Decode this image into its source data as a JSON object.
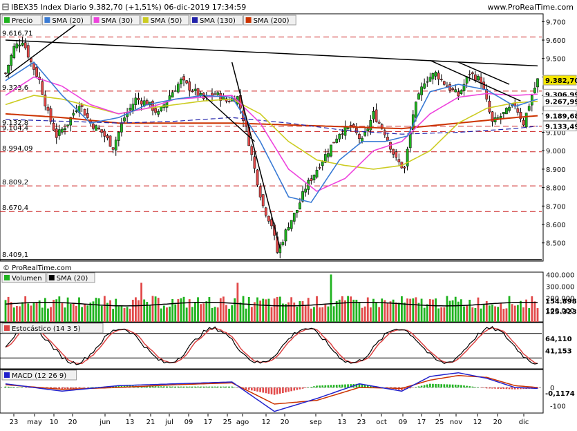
{
  "header": {
    "title": "IBEX35 Index Diario 9.382,70 (+1,51%) 06-dic-2019 17:34:59",
    "brand": "www.ProRealTime.com"
  },
  "watermark": "© ProRealTime.com",
  "colors": {
    "up": "#1fb31f",
    "down": "#e24a4a",
    "sma20": "#3a7bd5",
    "sma30": "#ee44dd",
    "sma50": "#cccc22",
    "sma130": "#2222aa",
    "sma200": "#cc3300",
    "stoch_k": "#000000",
    "stoch_d": "#dd4444",
    "macd": "#2222cc",
    "signal": "#cc3300"
  },
  "price_panel": {
    "legend": [
      {
        "label": "Precio",
        "color": "#1fb31f"
      },
      {
        "label": "SMA (20)",
        "color": "#3a7bd5"
      },
      {
        "label": "SMA (30)",
        "color": "#ee44dd"
      },
      {
        "label": "SMA (50)",
        "color": "#cccc22"
      },
      {
        "label": "SMA (130)",
        "color": "#2222aa"
      },
      {
        "label": "SMA (200)",
        "color": "#cc3300"
      }
    ],
    "level_labels": [
      "9.616,71",
      "9.323,6",
      "9.132,8",
      "9.104,4",
      "8.994,09",
      "8.809,2",
      "8.670,4",
      "8.409,1"
    ],
    "axis_ticks": [
      "9.700",
      "9.600",
      "9.500",
      "9.400",
      "9.300",
      "9.200",
      "9.100",
      "9.000",
      "8.900",
      "8.800",
      "8.700",
      "8.600",
      "8.500"
    ],
    "value_badges": [
      {
        "text": "9.382,70",
        "bg": "#f5e600",
        "fg": "#000"
      },
      {
        "text": "9.306,99",
        "bg": "#ffffff",
        "fg": "#ee44dd"
      },
      {
        "text": "9.267,99",
        "bg": "#ffffff",
        "fg": "#bbbb00"
      },
      {
        "text": "9.189,68",
        "bg": "#ffffff",
        "fg": "#cc3300"
      },
      {
        "text": "9.133,49",
        "bg": "#ffffff",
        "fg": "#2222aa"
      }
    ]
  },
  "volume_panel": {
    "legend": [
      {
        "label": "Volumen",
        "color": "#1fb31f"
      },
      {
        "label": "SMA (20)",
        "color": "#000000"
      }
    ],
    "axis_ticks": [
      "400.000",
      "300.000",
      "200.000",
      "100.000"
    ],
    "value_badges": [
      {
        "text": "154.898",
        "bg": "#ffffff",
        "fg": "#000"
      },
      {
        "text": "125.323",
        "bg": "#ffffff",
        "fg": "#1fb31f"
      }
    ]
  },
  "stoch_panel": {
    "legend": [
      {
        "label": "Estocástico (14 3 5)",
        "color": "#dd4444"
      }
    ],
    "value_badges": [
      {
        "text": "64,110",
        "bg": "#ffffff",
        "fg": "#000"
      },
      {
        "text": "41,153",
        "bg": "#ffffff",
        "fg": "#dd4444"
      }
    ]
  },
  "macd_panel": {
    "legend": [
      {
        "label": "MACD (12 26 9)",
        "color": "#2222cc"
      }
    ],
    "axis_ticks": [
      "0",
      "-100"
    ],
    "value_badges": [
      {
        "text": "-0,1174",
        "bg": "#ffffff",
        "fg": "#dd4444"
      }
    ]
  },
  "x_axis": {
    "ticks": [
      "23",
      "may",
      "10",
      "20",
      "jun",
      "13",
      "21",
      "jul",
      "09",
      "17",
      "25",
      "ago",
      "12",
      "20",
      "sep",
      "13",
      "23",
      "oct",
      "09",
      "17",
      "25",
      "nov",
      "12",
      "20",
      "dic"
    ]
  },
  "chart_data": {
    "type": "candlestick",
    "title": "IBEX35 Index Diario",
    "ylim": [
      8409,
      9720
    ],
    "last_close": 9382.7,
    "change_pct": 1.51,
    "date": "06-dic-2019",
    "close_path": [
      [
        0,
        9420
      ],
      [
        3,
        9560
      ],
      [
        6,
        9600
      ],
      [
        9,
        9480
      ],
      [
        12,
        9380
      ],
      [
        15,
        9200
      ],
      [
        18,
        9080
      ],
      [
        22,
        9150
      ],
      [
        26,
        9260
      ],
      [
        30,
        9150
      ],
      [
        34,
        9100
      ],
      [
        38,
        9020
      ],
      [
        42,
        9180
      ],
      [
        46,
        9280
      ],
      [
        50,
        9260
      ],
      [
        54,
        9200
      ],
      [
        58,
        9300
      ],
      [
        62,
        9380
      ],
      [
        66,
        9330
      ],
      [
        70,
        9280
      ],
      [
        74,
        9310
      ],
      [
        78,
        9270
      ],
      [
        82,
        9290
      ],
      [
        85,
        9120
      ],
      [
        88,
        8900
      ],
      [
        91,
        8700
      ],
      [
        94,
        8600
      ],
      [
        96,
        8450
      ],
      [
        98,
        8520
      ],
      [
        100,
        8600
      ],
      [
        103,
        8680
      ],
      [
        106,
        8800
      ],
      [
        110,
        8900
      ],
      [
        114,
        9000
      ],
      [
        118,
        9100
      ],
      [
        122,
        9130
      ],
      [
        126,
        9050
      ],
      [
        130,
        9200
      ],
      [
        134,
        9100
      ],
      [
        138,
        8950
      ],
      [
        141,
        8900
      ],
      [
        144,
        9200
      ],
      [
        148,
        9380
      ],
      [
        152,
        9420
      ],
      [
        156,
        9350
      ],
      [
        160,
        9300
      ],
      [
        164,
        9420
      ],
      [
        168,
        9380
      ],
      [
        172,
        9150
      ],
      [
        176,
        9200
      ],
      [
        180,
        9250
      ],
      [
        183,
        9150
      ],
      [
        186,
        9300
      ],
      [
        188,
        9382.7
      ]
    ],
    "sma20_path": [
      [
        0,
        9380
      ],
      [
        10,
        9480
      ],
      [
        20,
        9300
      ],
      [
        30,
        9150
      ],
      [
        40,
        9180
      ],
      [
        50,
        9250
      ],
      [
        60,
        9280
      ],
      [
        70,
        9300
      ],
      [
        80,
        9290
      ],
      [
        90,
        9050
      ],
      [
        100,
        8750
      ],
      [
        108,
        8720
      ],
      [
        118,
        8950
      ],
      [
        126,
        9050
      ],
      [
        134,
        9050
      ],
      [
        142,
        9080
      ],
      [
        150,
        9320
      ],
      [
        160,
        9360
      ],
      [
        170,
        9330
      ],
      [
        180,
        9240
      ],
      [
        188,
        9280
      ]
    ],
    "sma30_path": [
      [
        0,
        9300
      ],
      [
        10,
        9400
      ],
      [
        20,
        9350
      ],
      [
        30,
        9250
      ],
      [
        40,
        9200
      ],
      [
        50,
        9230
      ],
      [
        60,
        9280
      ],
      [
        70,
        9290
      ],
      [
        80,
        9300
      ],
      [
        90,
        9150
      ],
      [
        100,
        8900
      ],
      [
        110,
        8780
      ],
      [
        120,
        8850
      ],
      [
        130,
        9000
      ],
      [
        140,
        9050
      ],
      [
        150,
        9200
      ],
      [
        160,
        9290
      ],
      [
        170,
        9310
      ],
      [
        180,
        9300
      ],
      [
        188,
        9306.99
      ]
    ],
    "sma50_path": [
      [
        0,
        9250
      ],
      [
        10,
        9300
      ],
      [
        20,
        9280
      ],
      [
        30,
        9240
      ],
      [
        40,
        9200
      ],
      [
        50,
        9230
      ],
      [
        60,
        9250
      ],
      [
        70,
        9270
      ],
      [
        80,
        9280
      ],
      [
        90,
        9200
      ],
      [
        100,
        9050
      ],
      [
        110,
        8950
      ],
      [
        120,
        8920
      ],
      [
        130,
        8900
      ],
      [
        140,
        8920
      ],
      [
        150,
        9000
      ],
      [
        160,
        9150
      ],
      [
        170,
        9230
      ],
      [
        180,
        9260
      ],
      [
        188,
        9267.99
      ]
    ],
    "sma130_path": [
      [
        0,
        9170
      ],
      [
        20,
        9160
      ],
      [
        40,
        9150
      ],
      [
        60,
        9160
      ],
      [
        80,
        9180
      ],
      [
        100,
        9150
      ],
      [
        120,
        9110
      ],
      [
        140,
        9090
      ],
      [
        160,
        9100
      ],
      [
        180,
        9120
      ],
      [
        188,
        9133.49
      ]
    ],
    "sma200_path": [
      [
        0,
        9200
      ],
      [
        20,
        9180
      ],
      [
        40,
        9150
      ],
      [
        60,
        9150
      ],
      [
        80,
        9150
      ],
      [
        100,
        9140
      ],
      [
        120,
        9130
      ],
      [
        140,
        9120
      ],
      [
        160,
        9150
      ],
      [
        180,
        9180
      ],
      [
        188,
        9189.68
      ]
    ]
  }
}
